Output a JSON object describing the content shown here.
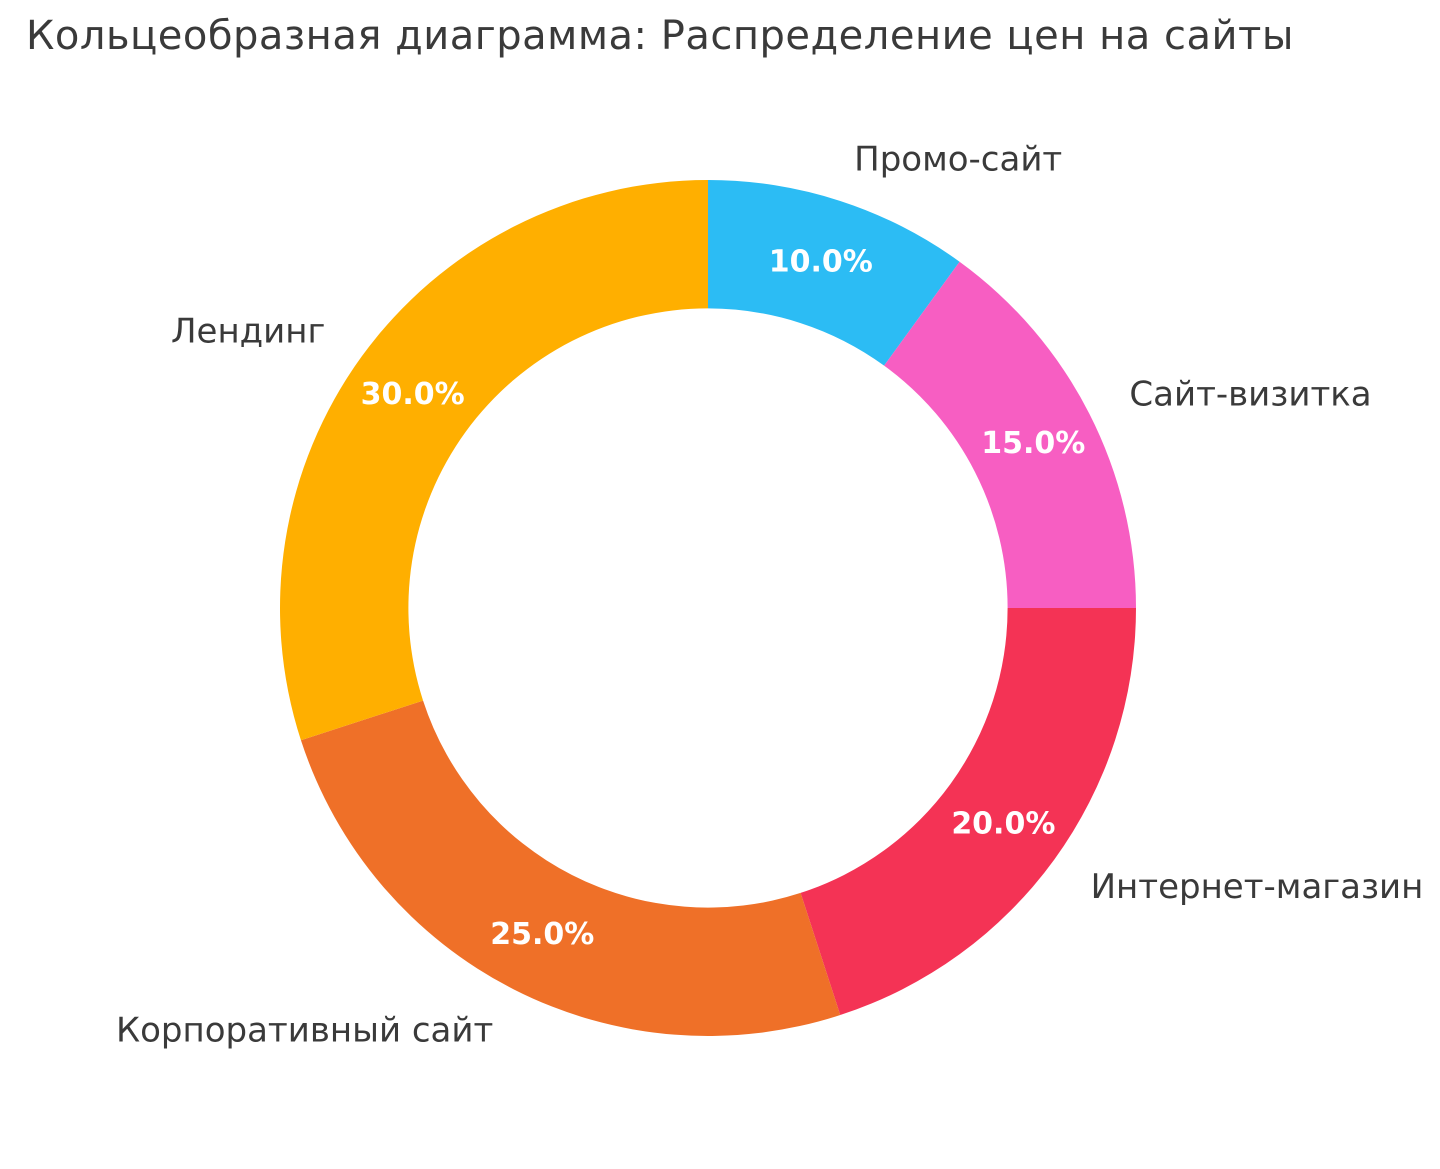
{
  "chart_data": {
    "type": "pie",
    "subtype": "donut",
    "title": "Кольцеобразная диаграмма: Распределение цен на сайты",
    "categories": [
      "Промо-сайт",
      "Сайт-визитка",
      "Интернет-магазин",
      "Корпоративный сайт",
      "Лендинг"
    ],
    "values": [
      10.0,
      15.0,
      20.0,
      25.0,
      30.0
    ],
    "value_labels": [
      "10.0%",
      "15.0%",
      "20.0%",
      "25.0%",
      "30.0%"
    ],
    "colors": [
      "#2cbcf4",
      "#f75ec2",
      "#f43355",
      "#ef7028",
      "#ffaf00"
    ],
    "start_angle_deg": 0,
    "direction": "clockwise",
    "hole_ratio": 0.7,
    "pct_label_distance": 0.853,
    "category_label_distance": 1.105,
    "legend": "none",
    "pct_label_color": "#ffffff",
    "category_label_color": "#3a3a3a",
    "background_color": "#ffffff"
  }
}
